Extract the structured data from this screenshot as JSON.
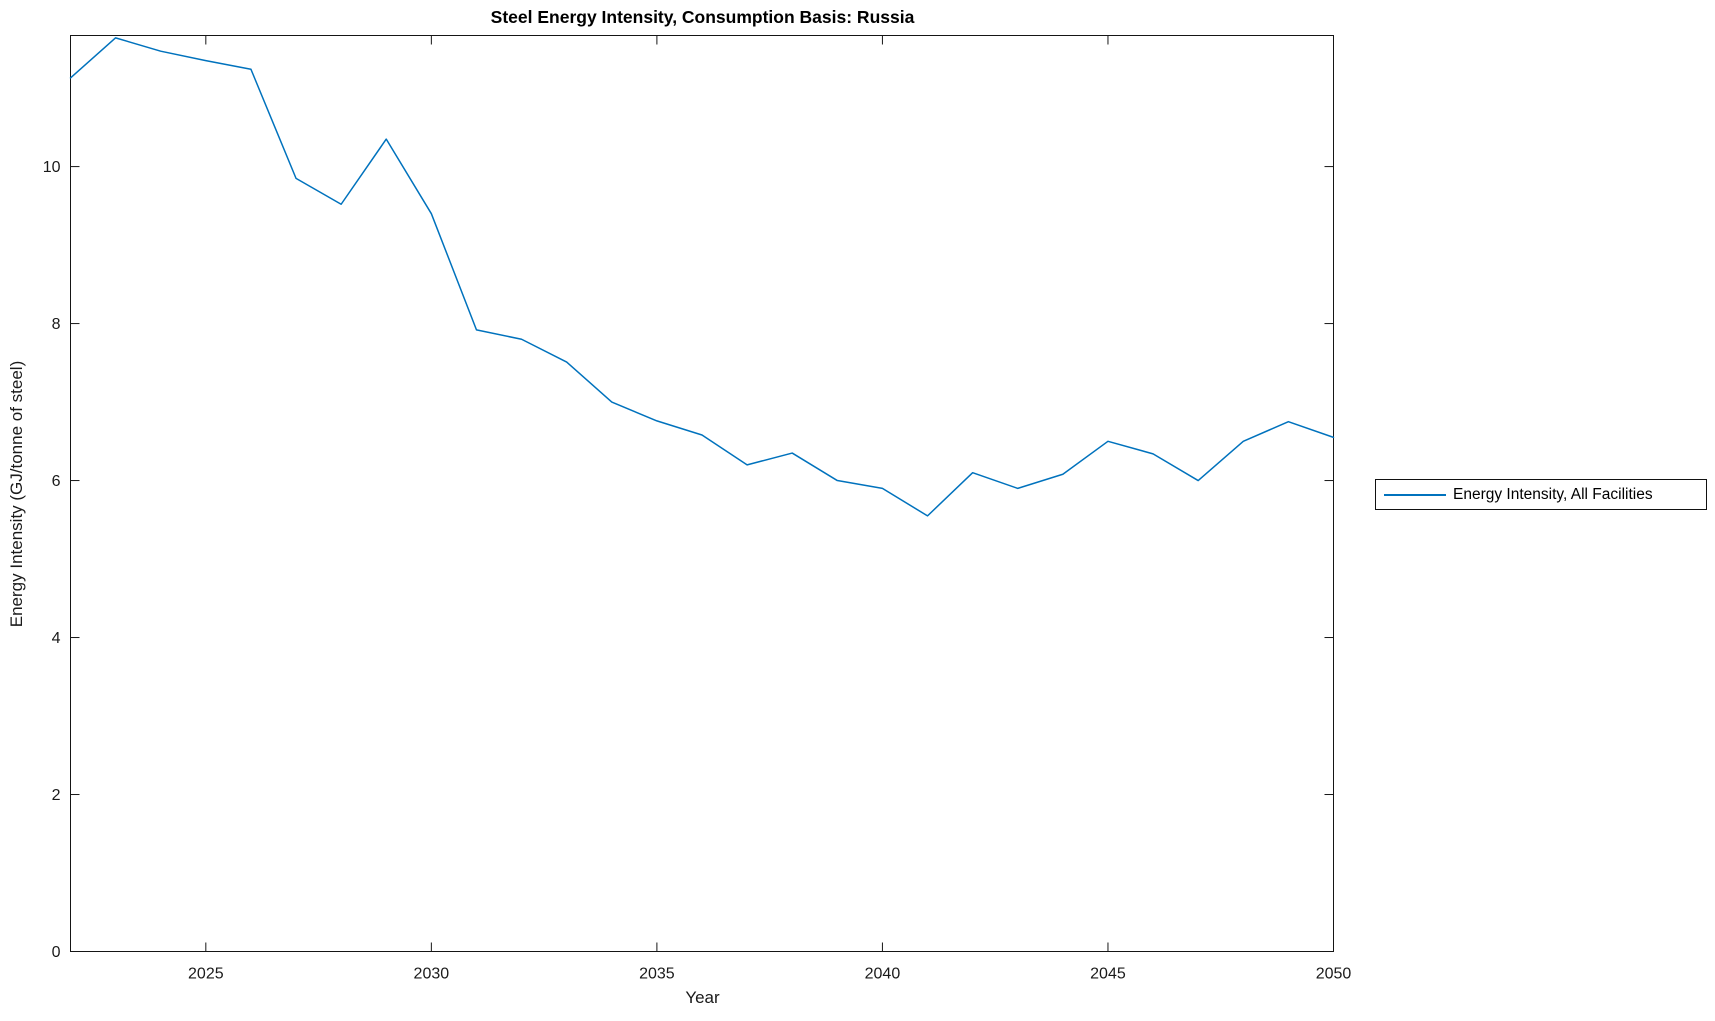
{
  "chart_data": {
    "type": "line",
    "title": "Steel Energy Intensity, Consumption Basis: Russia",
    "xlabel": "Year",
    "ylabel": "Energy Intensity (GJ/tonne of steel)",
    "xlim": [
      2022,
      2050
    ],
    "ylim": [
      0,
      11.67
    ],
    "xticks": [
      2025,
      2030,
      2035,
      2040,
      2045,
      2050
    ],
    "yticks": [
      0,
      2,
      4,
      6,
      8,
      10
    ],
    "grid": false,
    "box": true,
    "legend_position": "outside-right",
    "line_color": "#0072BD",
    "axis_color": "#151515",
    "tick_label_color": "#1a1a1a",
    "series": [
      {
        "name": "Energy Intensity, All Facilities",
        "x": [
          2022,
          2023,
          2024,
          2025,
          2026,
          2027,
          2028,
          2029,
          2030,
          2031,
          2032,
          2033,
          2034,
          2035,
          2036,
          2037,
          2038,
          2039,
          2040,
          2041,
          2042,
          2043,
          2044,
          2045,
          2046,
          2047,
          2048,
          2049,
          2050
        ],
        "values": [
          11.13,
          11.64,
          11.47,
          11.35,
          11.24,
          9.85,
          9.52,
          10.35,
          9.4,
          7.92,
          7.8,
          7.51,
          7.0,
          6.76,
          6.58,
          6.2,
          6.35,
          6.0,
          5.9,
          5.55,
          6.1,
          5.9,
          6.08,
          6.5,
          6.34,
          6.0,
          6.5,
          6.75,
          6.55
        ]
      }
    ]
  }
}
